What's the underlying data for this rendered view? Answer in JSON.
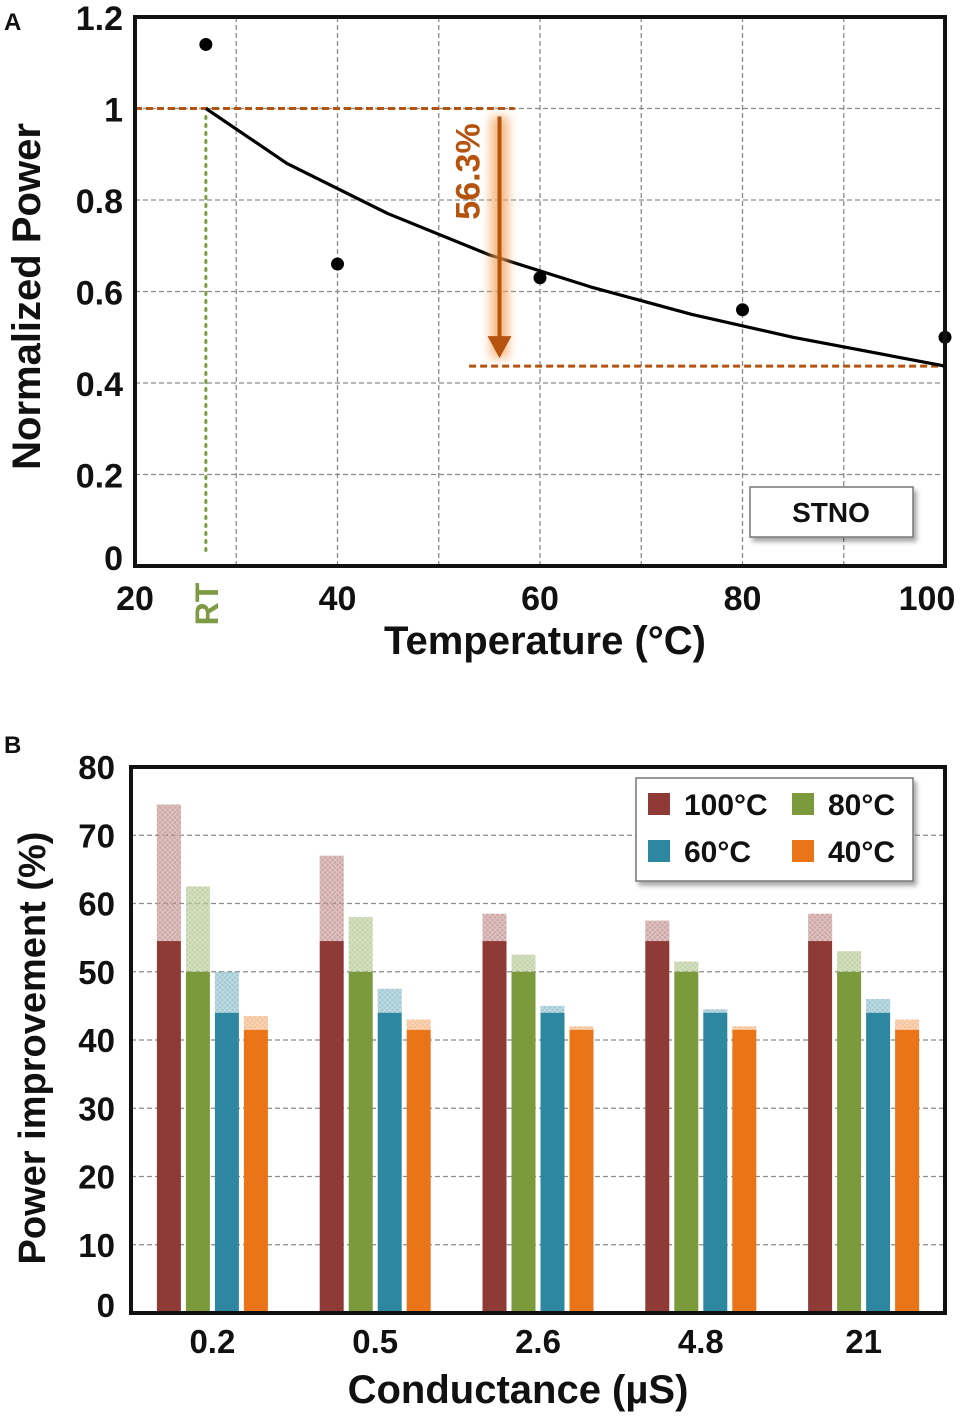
{
  "chart_data": [
    {
      "panel": "A",
      "type": "scatter",
      "xlabel": "Temperature (°C)",
      "ylabel": "Normalized Power",
      "xlim": [
        20,
        100
      ],
      "ylim": [
        0,
        1.2
      ],
      "xticks": [
        "20",
        "40",
        "60",
        "80",
        "100"
      ],
      "yticks": [
        "0",
        "0.2",
        "0.4",
        "0.6",
        "0.8",
        "1",
        "1.2"
      ],
      "grid": true,
      "points": {
        "x": [
          27,
          40,
          60,
          80,
          100
        ],
        "y": [
          1.14,
          0.66,
          0.63,
          0.56,
          0.5
        ]
      },
      "fit_curve": {
        "x": [
          27,
          35,
          45,
          55,
          65,
          75,
          85,
          100
        ],
        "y": [
          1.0,
          0.88,
          0.77,
          0.68,
          0.61,
          0.55,
          0.5,
          0.437
        ]
      },
      "room_temperature": {
        "x": 27,
        "label": "RT"
      },
      "reference_levels": [
        1.0,
        0.437
      ],
      "annotation": {
        "text": "56.3%",
        "x": 56,
        "y_from": 1.0,
        "y_to": 0.437
      },
      "legend": {
        "label": "STNO",
        "position": "bottom-right"
      },
      "colors": {
        "annotation": "#b5530f",
        "rt": "#7f9a45",
        "curve": "#000000",
        "points": "#000000"
      }
    },
    {
      "panel": "B",
      "type": "bar",
      "xlabel": "Conductance (µS)",
      "ylabel": "Power improvement (%)",
      "ylim": [
        0,
        80
      ],
      "yticks": [
        "0",
        "10",
        "20",
        "30",
        "40",
        "50",
        "60",
        "70",
        "80"
      ],
      "categories": [
        "0.2",
        "0.5",
        "2.6",
        "4.8",
        "21"
      ],
      "grid": true,
      "legend_position": "top-right",
      "series": [
        {
          "name": "100°C",
          "color": "#8f3a36",
          "base": [
            54.5,
            54.5,
            54.5,
            54.5,
            54.5
          ],
          "values": [
            74.5,
            67.0,
            58.5,
            57.5,
            58.5
          ]
        },
        {
          "name": "80°C",
          "color": "#7a9a3c",
          "base": [
            50,
            50,
            50,
            50,
            50
          ],
          "values": [
            62.5,
            58.0,
            52.5,
            51.5,
            53.0
          ]
        },
        {
          "name": "60°C",
          "color": "#2e87a0",
          "base": [
            44,
            44,
            44,
            44,
            44
          ],
          "values": [
            50.0,
            47.5,
            45.0,
            44.5,
            46.0
          ]
        },
        {
          "name": "40°C",
          "color": "#ea7418",
          "base": [
            41.5,
            41.5,
            41.5,
            41.5,
            41.5
          ],
          "values": [
            43.5,
            43.0,
            42.0,
            42.0,
            43.0
          ]
        }
      ]
    }
  ]
}
